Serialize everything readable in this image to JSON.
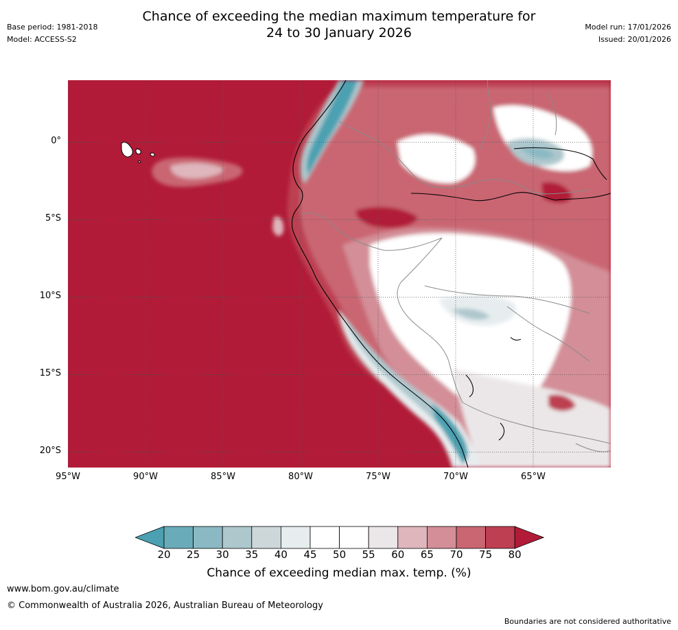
{
  "header": {
    "title_line1": "Chance of exceeding the median maximum temperature for",
    "title_line2": "24 to 30 January 2026",
    "base_period": "Base period: 1981-2018",
    "model": "Model: ACCESS-S2",
    "model_run": "Model run: 17/01/2026",
    "issued": "Issued: 20/01/2026"
  },
  "map": {
    "region": "Western South America (Ecuador, Peru, Colombia, Galápagos)",
    "lat_labels": [
      "0°",
      "5°S",
      "10°S",
      "15°S",
      "20°S"
    ],
    "lon_labels": [
      "95°W",
      "90°W",
      "85°W",
      "80°W",
      "75°W",
      "70°W",
      "65°W"
    ],
    "lat_values": [
      0,
      -5,
      -10,
      -15,
      -20
    ],
    "lon_values": [
      -95,
      -90,
      -85,
      -80,
      -75,
      -70,
      -65
    ],
    "lat_range": [
      -21,
      4
    ],
    "lon_range": [
      -95,
      -60
    ],
    "ocean_category": "80+",
    "colors": {
      "c_lt20": "#4ba0b1",
      "c20_25": "#6aabb9",
      "c25_30": "#8ab9c4",
      "c30_35": "#adc7cd",
      "c35_40": "#cdd7da",
      "c40_45": "#e7edef",
      "c45_50": "#ffffff",
      "c50_55": "#ffffff",
      "c55_60": "#ebe7e8",
      "c60_65": "#dfb6bc",
      "c65_70": "#d38e97",
      "c70_75": "#c96672",
      "c75_80": "#bd3f51",
      "c_gt80": "#b11b37"
    }
  },
  "colorbar": {
    "ticks": [
      "20",
      "25",
      "30",
      "35",
      "40",
      "45",
      "50",
      "55",
      "60",
      "65",
      "70",
      "75",
      "80"
    ],
    "label": "Chance of exceeding median max. temp. (%)",
    "colors": [
      "#6aabb9",
      "#8ab9c4",
      "#adc7cd",
      "#cdd7da",
      "#e7edef",
      "#ffffff",
      "#ffffff",
      "#ebe7e8",
      "#dfb6bc",
      "#d38e97",
      "#c96672",
      "#bd3f51"
    ],
    "under_color": "#4ba0b1",
    "over_color": "#b11b37"
  },
  "footer": {
    "website": "www.bom.gov.au/climate",
    "copyright": "© Commonwealth of Australia 2026, Australian Bureau of Meteorology",
    "disclaimer": "Boundaries are not considered authoritative"
  }
}
